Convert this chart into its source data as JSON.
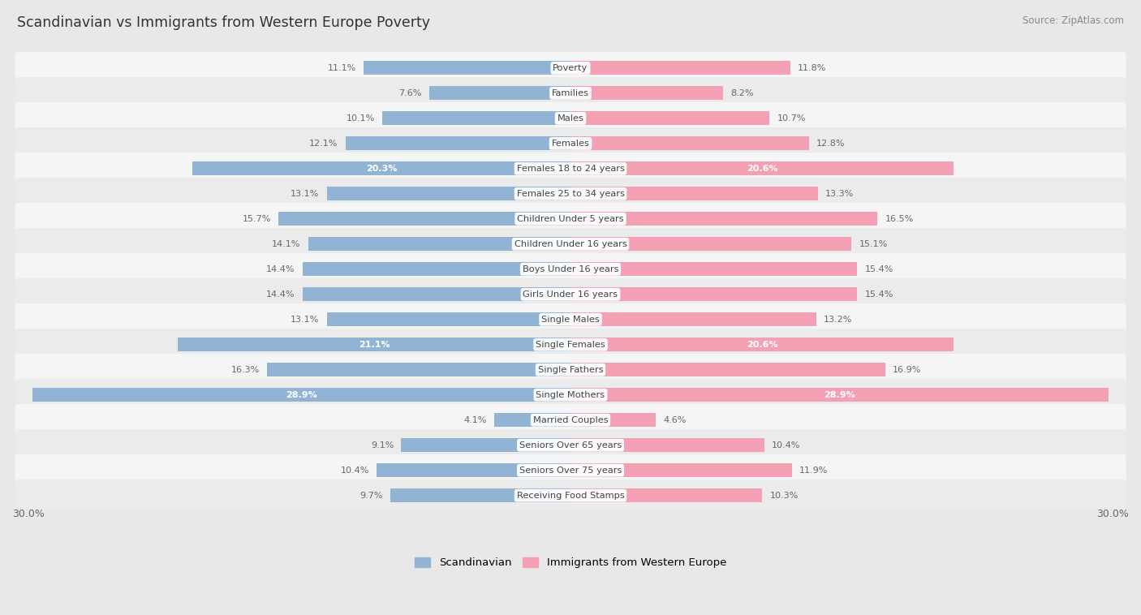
{
  "title": "Scandinavian vs Immigrants from Western Europe Poverty",
  "source": "Source: ZipAtlas.com",
  "categories": [
    "Poverty",
    "Families",
    "Males",
    "Females",
    "Females 18 to 24 years",
    "Females 25 to 34 years",
    "Children Under 5 years",
    "Children Under 16 years",
    "Boys Under 16 years",
    "Girls Under 16 years",
    "Single Males",
    "Single Females",
    "Single Fathers",
    "Single Mothers",
    "Married Couples",
    "Seniors Over 65 years",
    "Seniors Over 75 years",
    "Receiving Food Stamps"
  ],
  "scandinavian": [
    11.1,
    7.6,
    10.1,
    12.1,
    20.3,
    13.1,
    15.7,
    14.1,
    14.4,
    14.4,
    13.1,
    21.1,
    16.3,
    28.9,
    4.1,
    9.1,
    10.4,
    9.7
  ],
  "western_europe": [
    11.8,
    8.2,
    10.7,
    12.8,
    20.6,
    13.3,
    16.5,
    15.1,
    15.4,
    15.4,
    13.2,
    20.6,
    16.9,
    28.9,
    4.6,
    10.4,
    11.9,
    10.3
  ],
  "blue_color": "#92b4d4",
  "pink_color": "#f4a0b4",
  "white_text_color": "#ffffff",
  "dark_text_color": "#666666",
  "bg_color": "#e8e8e8",
  "row_bg_even": "#f5f5f5",
  "row_bg_odd": "#ebebeb",
  "axis_limit": 30.0,
  "legend_scandinavian": "Scandinavian",
  "legend_western": "Immigrants from Western Europe",
  "white_text_threshold": 18.0
}
